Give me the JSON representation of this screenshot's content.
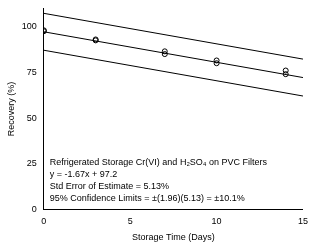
{
  "chart_data": {
    "type": "scatter",
    "x_label": "Storage Time (Days)",
    "y_label": "Recovery (%)",
    "xlim": [
      0,
      15
    ],
    "xticks": [
      0,
      5,
      10,
      15
    ],
    "ylim": [
      0,
      110
    ],
    "yticks": [
      0,
      25,
      50,
      75,
      100
    ],
    "grid": false,
    "tick_labels": true,
    "annotations": [
      "Refrigerated Storage Cr(VI) and H₂SO₄ on PVC Filters",
      "y = -1.67x + 97.2",
      "Std Error of Estimate = 5.13%",
      "95% Confidence Limits = ±(1.96)(5.13) = ±10.1%"
    ],
    "series": [
      {
        "type": "scatter",
        "marker": "circle",
        "color": "#000000",
        "x": [
          0,
          0,
          3,
          3,
          7,
          7,
          10,
          10,
          14,
          14
        ],
        "values": [
          97.5,
          98,
          92.5,
          93,
          85,
          86.5,
          80,
          81.5,
          74,
          76
        ]
      },
      {
        "type": "line",
        "line_style": "solid",
        "color": "#000000",
        "x": [
          0,
          15
        ],
        "values": [
          97.2,
          72.15
        ]
      },
      {
        "type": "line",
        "line_style": "solid",
        "color": "#000000",
        "x": [
          0,
          15
        ],
        "values": [
          107.3,
          82.25
        ]
      },
      {
        "type": "line",
        "line_style": "solid",
        "color": "#000000",
        "x": [
          0,
          15
        ],
        "values": [
          87.1,
          62.05
        ]
      }
    ]
  }
}
